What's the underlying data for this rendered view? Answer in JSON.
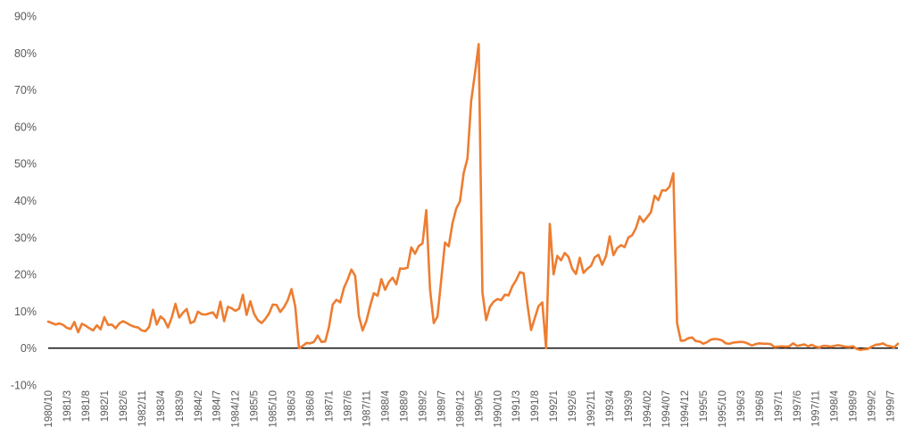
{
  "chart_data": {
    "type": "line",
    "title": "",
    "xlabel": "",
    "ylabel": "",
    "ylim": [
      -0.1,
      0.9
    ],
    "y_ticks": [
      -0.1,
      0,
      0.1,
      0.2,
      0.3,
      0.4,
      0.5,
      0.6,
      0.7,
      0.8,
      0.9
    ],
    "y_tick_labels": [
      "-10%",
      "0%",
      "10%",
      "20%",
      "30%",
      "40%",
      "50%",
      "60%",
      "70%",
      "80%",
      "90%"
    ],
    "x_tick_labels": [
      "1980/10",
      "1981/3",
      "1981/8",
      "1982/1",
      "1982/6",
      "1982/11",
      "1983/4",
      "1983/9",
      "1984/2",
      "1984/7",
      "1984/12",
      "1985/5",
      "1985/10",
      "1986/3",
      "1986/8",
      "1987/1",
      "1987/6",
      "1987/11",
      "1988/4",
      "1988/9",
      "1989/2",
      "1989/7",
      "1989/12",
      "1990/5",
      "1990/10",
      "1991/3",
      "1991/8",
      "1992/1",
      "1992/6",
      "1992/11",
      "1993/4",
      "1993/9",
      "1994/02",
      "1994/07",
      "1994/12",
      "1995/5",
      "1995/10",
      "1996/3",
      "1996/8",
      "1997/1",
      "1997/6",
      "1997/11",
      "1998/4",
      "1998/9",
      "1999/2",
      "1999/7"
    ],
    "line_color": "#ED7D31",
    "zero_line_color": "#000000",
    "grid": false,
    "legend": "none",
    "series": [
      {
        "x_start": "1980/10",
        "x_end": "1999/7",
        "frequency": "monthly",
        "values": [
          0.072,
          0.068,
          0.064,
          0.067,
          0.063,
          0.055,
          0.052,
          0.071,
          0.043,
          0.066,
          0.061,
          0.054,
          0.048,
          0.062,
          0.051,
          0.084,
          0.063,
          0.064,
          0.054,
          0.067,
          0.073,
          0.068,
          0.062,
          0.058,
          0.056,
          0.048,
          0.046,
          0.058,
          0.104,
          0.064,
          0.086,
          0.077,
          0.056,
          0.083,
          0.12,
          0.083,
          0.096,
          0.106,
          0.068,
          0.072,
          0.099,
          0.092,
          0.091,
          0.094,
          0.097,
          0.082,
          0.126,
          0.073,
          0.112,
          0.108,
          0.101,
          0.107,
          0.145,
          0.09,
          0.127,
          0.093,
          0.076,
          0.068,
          0.079,
          0.094,
          0.118,
          0.117,
          0.098,
          0.111,
          0.13,
          0.16,
          0.113,
          0.0,
          0.006,
          0.014,
          0.013,
          0.017,
          0.034,
          0.017,
          0.018,
          0.057,
          0.118,
          0.131,
          0.124,
          0.163,
          0.186,
          0.213,
          0.196,
          0.087,
          0.048,
          0.074,
          0.114,
          0.149,
          0.142,
          0.187,
          0.158,
          0.179,
          0.191,
          0.173,
          0.216,
          0.215,
          0.218,
          0.273,
          0.256,
          0.277,
          0.284,
          0.374,
          0.16,
          0.068,
          0.086,
          0.186,
          0.286,
          0.276,
          0.338,
          0.378,
          0.398,
          0.475,
          0.514,
          0.67,
          0.744,
          0.824,
          0.151,
          0.076,
          0.112,
          0.126,
          0.133,
          0.13,
          0.145,
          0.143,
          0.168,
          0.184,
          0.206,
          0.203,
          0.12,
          0.049,
          0.082,
          0.114,
          0.124,
          0.0,
          0.337,
          0.2,
          0.25,
          0.238,
          0.258,
          0.247,
          0.215,
          0.201,
          0.245,
          0.204,
          0.215,
          0.223,
          0.246,
          0.253,
          0.226,
          0.249,
          0.303,
          0.252,
          0.271,
          0.279,
          0.274,
          0.3,
          0.306,
          0.325,
          0.357,
          0.342,
          0.355,
          0.368,
          0.413,
          0.401,
          0.428,
          0.427,
          0.438,
          0.474,
          0.068,
          0.02,
          0.021,
          0.027,
          0.029,
          0.019,
          0.018,
          0.012,
          0.016,
          0.023,
          0.025,
          0.024,
          0.021,
          0.013,
          0.012,
          0.015,
          0.016,
          0.017,
          0.016,
          0.012,
          0.007,
          0.011,
          0.013,
          0.012,
          0.012,
          0.011,
          0.003,
          0.004,
          0.005,
          0.004,
          0.005,
          0.013,
          0.006,
          0.008,
          0.01,
          0.005,
          0.009,
          0.004,
          0.002,
          0.006,
          0.006,
          0.004,
          0.006,
          0.008,
          0.006,
          0.004,
          0.003,
          0.005,
          -0.002,
          -0.005,
          -0.003,
          -0.002,
          0.004,
          0.009,
          0.01,
          0.013,
          0.007,
          0.005,
          0.002,
          0.012
        ]
      }
    ]
  }
}
